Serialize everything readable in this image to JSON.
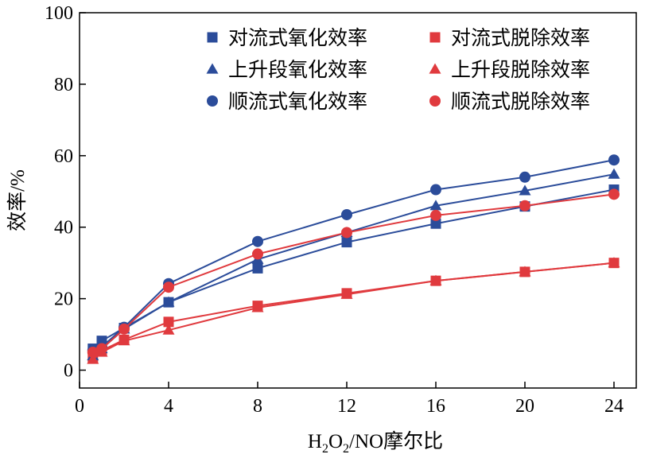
{
  "chart_data": {
    "type": "line",
    "x_tick_labels": [
      "0",
      "4",
      "8",
      "12",
      "16",
      "20",
      "24"
    ],
    "y_tick_labels": [
      "0",
      "20",
      "40",
      "60",
      "80",
      "100"
    ],
    "xlim": [
      0,
      25
    ],
    "ylim": [
      -5,
      100
    ],
    "x_ticks": [
      0,
      4,
      8,
      12,
      16,
      20,
      24
    ],
    "y_ticks": [
      0,
      20,
      40,
      60,
      80,
      100
    ],
    "xlabel_main": "H",
    "xlabel_sub1": "2",
    "xlabel_mid": "O",
    "xlabel_sub2": "2",
    "xlabel_tail": "/NO摩尔比",
    "ylabel": "效率/%",
    "legend_position": "top-right",
    "grid": false,
    "x": [
      0.6,
      1,
      2,
      4,
      8,
      12,
      16,
      20,
      24
    ],
    "series": [
      {
        "name": "对流式氧化效率",
        "color": "#2b4c9a",
        "marker": "square",
        "values": [
          6,
          8.2,
          11.8,
          19,
          28.5,
          35.8,
          41,
          45.8,
          50.5
        ]
      },
      {
        "name": "对流式脱除效率",
        "color": "#e03a3e",
        "marker": "square",
        "values": [
          3.5,
          5.5,
          8.5,
          13.5,
          18,
          21.5,
          25,
          27.5,
          30
        ]
      },
      {
        "name": "上升段氧化效率",
        "color": "#2b4c9a",
        "marker": "triangle",
        "values": [
          4,
          6,
          11.5,
          19,
          31,
          38.5,
          46,
          50.2,
          54.8
        ]
      },
      {
        "name": "上升段脱除效率",
        "color": "#e03a3e",
        "marker": "triangle",
        "values": [
          3,
          5,
          8.2,
          11.2,
          17.5,
          21.2,
          25,
          27.5,
          30
        ]
      },
      {
        "name": "顺流式氧化效率",
        "color": "#2b4c9a",
        "marker": "circle",
        "values": [
          5.5,
          6.5,
          12,
          24.2,
          36,
          43.5,
          50.5,
          54,
          58.8
        ]
      },
      {
        "name": "顺流式脱除效率",
        "color": "#e03a3e",
        "marker": "circle",
        "values": [
          5,
          6,
          11.5,
          23.2,
          32.5,
          38.5,
          43.3,
          46,
          49.2
        ]
      }
    ]
  }
}
